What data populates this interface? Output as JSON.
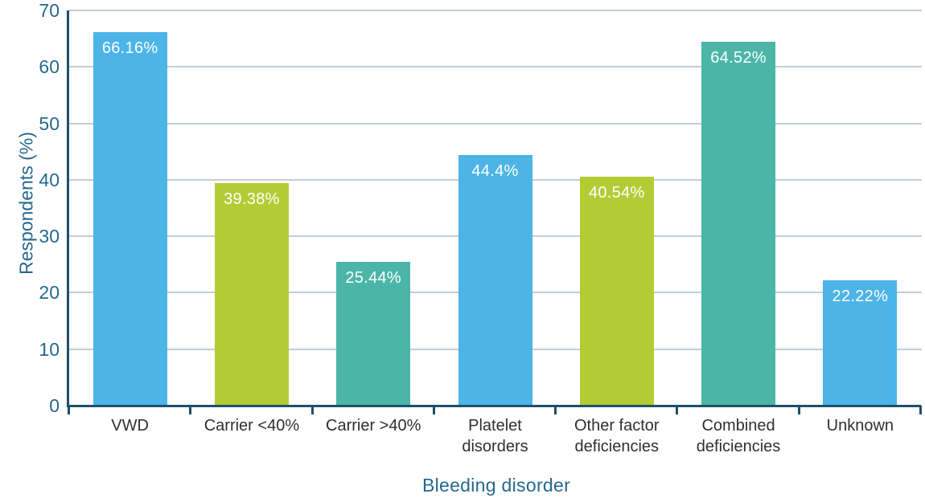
{
  "chart_data": {
    "type": "bar",
    "title": "",
    "xlabel": "Bleeding disorder",
    "ylabel": "Respondents (%)",
    "categories": [
      "VWD",
      "Carrier <40%",
      "Carrier >40%",
      "Platelet disorders",
      "Other factor deficiencies",
      "Combined deficiencies",
      "Unknown"
    ],
    "values": [
      66.16,
      39.38,
      25.44,
      44.4,
      40.54,
      64.52,
      22.22
    ],
    "value_labels": [
      "66.16%",
      "39.38%",
      "25.44%",
      "44.4%",
      "40.54%",
      "64.52%",
      "22.22%"
    ],
    "bar_color_keys": [
      "blue",
      "lime",
      "teal",
      "blue",
      "lime",
      "teal",
      "blue"
    ],
    "colors": {
      "blue": "#4CB4E7",
      "lime": "#B3CC34",
      "teal": "#4BB6A8"
    },
    "ylim": [
      0,
      70
    ],
    "yticks": [
      0,
      10,
      20,
      30,
      40,
      50,
      60,
      70
    ],
    "grid": "horizontal",
    "legend": "none"
  },
  "styles": {
    "background": "#FFFFFF",
    "axis_color": "#1C5069",
    "tick_label_color": "#26688C",
    "grid_color": "#BECFDA",
    "category_label_color": "#2F2F2F",
    "value_label_color": "#FFFFFF"
  }
}
